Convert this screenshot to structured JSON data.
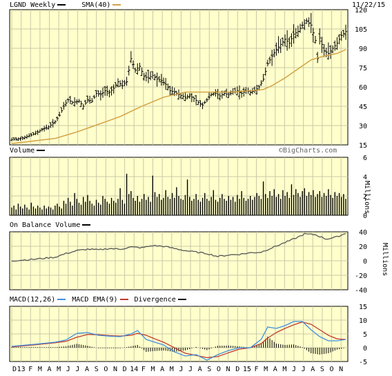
{
  "chart_data": [
    {
      "type": "ohlc",
      "panel": "price",
      "symbol": "LGND Weekly",
      "overlay_label": "SMA(40)",
      "date_label": "11/22/15",
      "watermark": "©BigCharts.com",
      "y_ticks": [
        15,
        30,
        45,
        60,
        75,
        90,
        105,
        120
      ],
      "ylim": [
        15,
        120
      ],
      "grid": true,
      "colors": {
        "bars": "#000000",
        "sma": "#d4a243",
        "background": "#ffffcc",
        "grid": "#c8c8a8"
      },
      "x_weeks": 155,
      "anchors_close": [
        [
          0,
          19
        ],
        [
          4,
          20
        ],
        [
          8,
          22
        ],
        [
          11,
          24
        ],
        [
          14,
          27
        ],
        [
          17,
          29
        ],
        [
          20,
          33
        ],
        [
          22,
          38
        ],
        [
          24,
          45
        ],
        [
          26,
          50
        ],
        [
          28,
          48
        ],
        [
          31,
          49
        ],
        [
          33,
          45
        ],
        [
          35,
          50
        ],
        [
          37,
          49
        ],
        [
          39,
          55
        ],
        [
          41,
          54
        ],
        [
          43,
          57
        ],
        [
          45,
          56
        ],
        [
          47,
          59
        ],
        [
          49,
          64
        ],
        [
          51,
          61
        ],
        [
          53,
          64
        ],
        [
          55,
          82
        ],
        [
          57,
          73
        ],
        [
          59,
          76
        ],
        [
          61,
          68
        ],
        [
          63,
          67
        ],
        [
          65,
          69
        ],
        [
          67,
          66
        ],
        [
          69,
          65
        ],
        [
          71,
          62
        ],
        [
          73,
          57
        ],
        [
          75,
          56
        ],
        [
          77,
          54
        ],
        [
          80,
          52
        ],
        [
          82,
          53
        ],
        [
          84,
          51
        ],
        [
          86,
          48
        ],
        [
          88,
          46
        ],
        [
          90,
          50
        ],
        [
          92,
          54
        ],
        [
          94,
          55
        ],
        [
          96,
          53
        ],
        [
          98,
          55
        ],
        [
          100,
          54
        ],
        [
          102,
          56
        ],
        [
          104,
          57
        ],
        [
          106,
          55
        ],
        [
          108,
          57
        ],
        [
          110,
          56
        ],
        [
          112,
          57
        ],
        [
          114,
          60
        ],
        [
          116,
          66
        ],
        [
          118,
          78
        ],
        [
          120,
          84
        ],
        [
          122,
          89
        ],
        [
          124,
          93
        ],
        [
          126,
          97
        ],
        [
          128,
          94
        ],
        [
          130,
          101
        ],
        [
          132,
          103
        ],
        [
          134,
          108
        ],
        [
          136,
          111
        ],
        [
          138,
          108
        ],
        [
          140,
          96
        ],
        [
          141,
          82
        ],
        [
          142,
          98
        ],
        [
          144,
          88
        ],
        [
          146,
          86
        ],
        [
          148,
          90
        ],
        [
          150,
          94
        ],
        [
          152,
          100
        ],
        [
          154,
          103
        ]
      ],
      "sma_anchors": [
        [
          0,
          16
        ],
        [
          20,
          20
        ],
        [
          30,
          25
        ],
        [
          40,
          31
        ],
        [
          50,
          37
        ],
        [
          60,
          45
        ],
        [
          70,
          52
        ],
        [
          80,
          56
        ],
        [
          90,
          56
        ],
        [
          100,
          56
        ],
        [
          110,
          57
        ],
        [
          116,
          58
        ],
        [
          120,
          61
        ],
        [
          126,
          67
        ],
        [
          132,
          74
        ],
        [
          138,
          81
        ],
        [
          144,
          84
        ],
        [
          150,
          86
        ],
        [
          154,
          89
        ]
      ]
    },
    {
      "type": "bar",
      "panel": "volume",
      "label": "Volume",
      "y_ticks": [
        0,
        2,
        4,
        6
      ],
      "ylim": [
        0,
        6
      ],
      "unit_label": "Millions",
      "grid": true,
      "values_millions": [
        0.8,
        1.0,
        0.6,
        1.2,
        0.9,
        0.7,
        1.1,
        0.8,
        0.6,
        1.3,
        0.9,
        0.7,
        1.0,
        0.8,
        0.6,
        1.0,
        0.7,
        0.9,
        0.8,
        0.6,
        1.0,
        1.2,
        0.9,
        0.7,
        1.5,
        1.2,
        1.8,
        1.4,
        1.0,
        2.3,
        1.7,
        1.3,
        1.1,
        1.9,
        1.4,
        2.1,
        1.5,
        1.2,
        1.0,
        1.6,
        1.3,
        1.1,
        2.0,
        1.7,
        1.4,
        1.2,
        1.8,
        1.5,
        1.3,
        1.7,
        2.8,
        1.6,
        1.2,
        4.3,
        2.2,
        2.5,
        1.8,
        1.5,
        2.0,
        1.4,
        1.7,
        2.2,
        1.6,
        1.9,
        1.4,
        4.1,
        2.4,
        1.9,
        2.2,
        1.6,
        1.8,
        2.6,
        1.9,
        1.7,
        2.3,
        1.8,
        2.9,
        2.0,
        1.7,
        1.6,
        2.1,
        3.7,
        1.9,
        1.5,
        1.7,
        2.2,
        1.6,
        1.4,
        1.8,
        2.3,
        1.7,
        1.5,
        1.9,
        2.6,
        1.6,
        1.4,
        1.8,
        2.2,
        1.7,
        1.5,
        2.0,
        1.6,
        1.9,
        1.4,
        2.1,
        1.7,
        2.5,
        1.8,
        1.5,
        1.7,
        2.0,
        1.6,
        1.9,
        2.3,
        2.0,
        1.7,
        3.5,
        2.2,
        1.8,
        2.5,
        2.0,
        2.7,
        1.9,
        2.2,
        1.7,
        2.6,
        2.0,
        2.4,
        1.8,
        3.2,
        2.1,
        2.7,
        2.3,
        1.9,
        2.5,
        2.8,
        2.0,
        2.4,
        2.1,
        2.6,
        1.9,
        2.2,
        2.5,
        1.9,
        2.3,
        2.0,
        2.7,
        2.1,
        1.8,
        2.4,
        2.0,
        2.3,
        1.9,
        2.2,
        1.7
      ]
    },
    {
      "type": "line",
      "panel": "obv",
      "label": "On Balance Volume",
      "y_ticks": [
        -40,
        -20,
        0,
        20,
        40
      ],
      "ylim": [
        -40,
        40
      ],
      "unit_label": "Millions",
      "grid": true,
      "anchors": [
        [
          0,
          0
        ],
        [
          10,
          2
        ],
        [
          20,
          5
        ],
        [
          25,
          10
        ],
        [
          30,
          14
        ],
        [
          35,
          16
        ],
        [
          40,
          15
        ],
        [
          45,
          17
        ],
        [
          50,
          16
        ],
        [
          55,
          19
        ],
        [
          60,
          18
        ],
        [
          65,
          21
        ],
        [
          70,
          20
        ],
        [
          75,
          17
        ],
        [
          80,
          14
        ],
        [
          85,
          12
        ],
        [
          90,
          10
        ],
        [
          95,
          6
        ],
        [
          100,
          8
        ],
        [
          105,
          9
        ],
        [
          110,
          11
        ],
        [
          115,
          12
        ],
        [
          120,
          18
        ],
        [
          125,
          24
        ],
        [
          130,
          30
        ],
        [
          135,
          37
        ],
        [
          140,
          36
        ],
        [
          145,
          30
        ],
        [
          150,
          33
        ],
        [
          154,
          38
        ]
      ]
    },
    {
      "type": "line",
      "panel": "macd",
      "legend": [
        "MACD(12,26)",
        "MACD EMA(9)",
        "Divergence"
      ],
      "y_ticks": [
        -5,
        0,
        5,
        10,
        15
      ],
      "ylim": [
        -5,
        15
      ],
      "grid": true,
      "colors": {
        "macd": "#3f8ee0",
        "ema": "#c0392b",
        "divergence": "#000000"
      },
      "macd_anchors": [
        [
          0,
          0.5
        ],
        [
          10,
          1.2
        ],
        [
          20,
          2.0
        ],
        [
          25,
          2.8
        ],
        [
          30,
          5.2
        ],
        [
          35,
          5.5
        ],
        [
          40,
          4.5
        ],
        [
          45,
          4.2
        ],
        [
          50,
          4.0
        ],
        [
          55,
          5.0
        ],
        [
          58,
          6.2
        ],
        [
          62,
          3.0
        ],
        [
          66,
          2.0
        ],
        [
          70,
          1.0
        ],
        [
          75,
          -1.5
        ],
        [
          80,
          -3.0
        ],
        [
          85,
          -2.5
        ],
        [
          90,
          -4.5
        ],
        [
          95,
          -2.5
        ],
        [
          100,
          -1.0
        ],
        [
          105,
          0.0
        ],
        [
          110,
          0.0
        ],
        [
          115,
          3.0
        ],
        [
          118,
          7.5
        ],
        [
          122,
          7.0
        ],
        [
          126,
          8.0
        ],
        [
          130,
          9.5
        ],
        [
          134,
          9.5
        ],
        [
          138,
          6.5
        ],
        [
          142,
          4.0
        ],
        [
          146,
          2.5
        ],
        [
          150,
          2.5
        ],
        [
          154,
          3.0
        ]
      ],
      "ema_anchors": [
        [
          0,
          0.3
        ],
        [
          10,
          1.0
        ],
        [
          20,
          1.8
        ],
        [
          25,
          2.3
        ],
        [
          30,
          3.8
        ],
        [
          35,
          4.8
        ],
        [
          40,
          4.7
        ],
        [
          45,
          4.4
        ],
        [
          50,
          4.2
        ],
        [
          55,
          4.5
        ],
        [
          58,
          5.2
        ],
        [
          62,
          4.5
        ],
        [
          66,
          3.2
        ],
        [
          70,
          2.0
        ],
        [
          75,
          0.0
        ],
        [
          80,
          -2.0
        ],
        [
          85,
          -2.8
        ],
        [
          90,
          -3.6
        ],
        [
          95,
          -3.2
        ],
        [
          100,
          -1.8
        ],
        [
          105,
          -0.5
        ],
        [
          110,
          0.0
        ],
        [
          115,
          1.5
        ],
        [
          118,
          3.5
        ],
        [
          122,
          5.5
        ],
        [
          126,
          7.0
        ],
        [
          130,
          8.3
        ],
        [
          134,
          9.3
        ],
        [
          138,
          8.5
        ],
        [
          142,
          6.5
        ],
        [
          146,
          4.5
        ],
        [
          150,
          3.2
        ],
        [
          154,
          3.0
        ]
      ]
    }
  ],
  "x_axis": {
    "labels": [
      "D",
      "13",
      "F",
      "M",
      "A",
      "M",
      "J",
      "J",
      "A",
      "S",
      "O",
      "N",
      "D",
      "14",
      "F",
      "M",
      "A",
      "M",
      "J",
      "J",
      "A",
      "S",
      "O",
      "N",
      "D",
      "15",
      "F",
      "M",
      "A",
      "M",
      "J",
      "J",
      "A",
      "S",
      "O",
      "N"
    ]
  }
}
